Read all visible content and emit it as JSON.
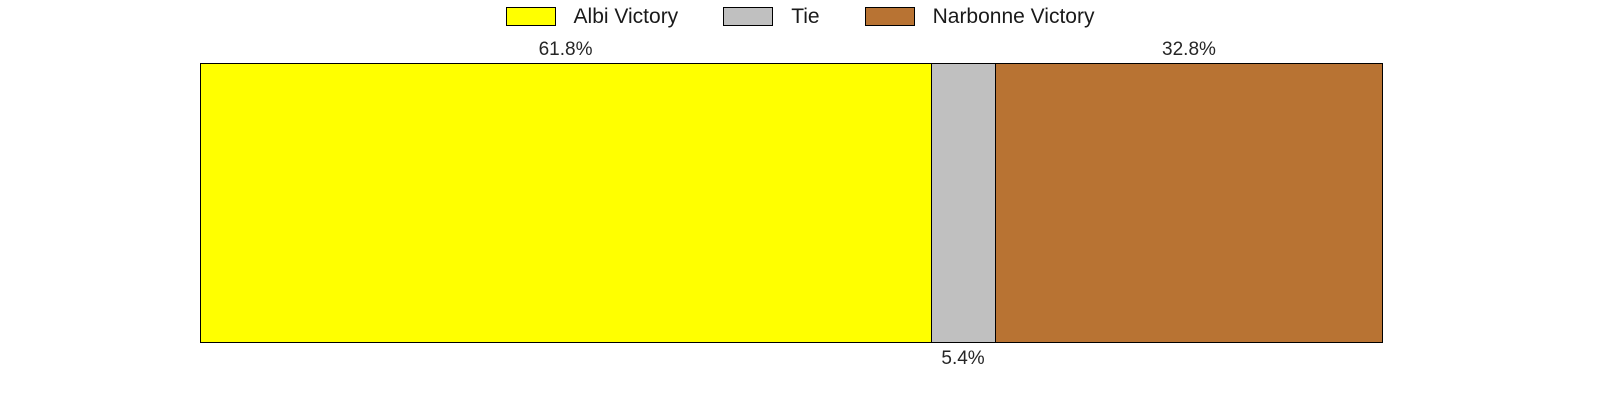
{
  "chart_data": {
    "type": "bar",
    "variant": "stacked-horizontal-100pct",
    "title": "",
    "xlabel": "",
    "ylabel": "",
    "axis_visible": false,
    "grid": false,
    "background": "#ffffff",
    "bar_border_color": "#000000",
    "label_color": "#262626",
    "categories": [
      "Albi Victory",
      "Tie",
      "Narbonne Victory"
    ],
    "series": [
      {
        "name": "Albi Victory",
        "value": 61.8,
        "label": "61.8%",
        "color": "#ffff00",
        "label_position": "above"
      },
      {
        "name": "Tie",
        "value": 5.4,
        "label": "5.4%",
        "color": "#c0c0c0",
        "label_position": "below"
      },
      {
        "name": "Narbonne Victory",
        "value": 32.8,
        "label": "32.8%",
        "color": "#b87333",
        "label_position": "above"
      }
    ],
    "legend": {
      "position": "top-center",
      "entries": [
        "Albi Victory",
        "Tie",
        "Narbonne Victory"
      ]
    }
  }
}
